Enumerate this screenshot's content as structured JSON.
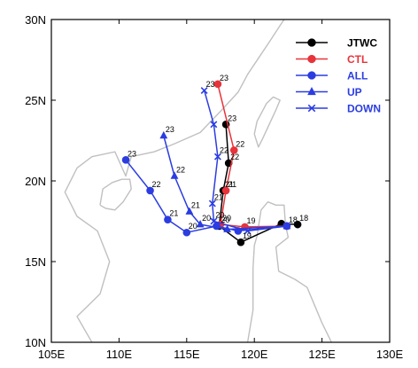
{
  "chart_data": {
    "type": "line",
    "title": "",
    "xlabel": "",
    "ylabel": "",
    "xlim": [
      105,
      130
    ],
    "ylim": [
      10,
      30
    ],
    "x_ticks": [
      105,
      110,
      115,
      120,
      125,
      130
    ],
    "x_tick_labels": [
      "105E",
      "110E",
      "115E",
      "120E",
      "125E",
      "130E"
    ],
    "y_ticks": [
      10,
      15,
      20,
      25,
      30
    ],
    "y_tick_labels": [
      "10N",
      "15N",
      "20N",
      "25N",
      "30N"
    ],
    "legend_position": "top-right",
    "grid": false,
    "basemap": "coastlines",
    "series": [
      {
        "name": "JTWC",
        "color": "#000000",
        "marker": "circle",
        "points": [
          {
            "x": 123.2,
            "y": 17.3,
            "label": "18"
          },
          {
            "x": 122.0,
            "y": 17.35,
            "label": ""
          },
          {
            "x": 119.0,
            "y": 16.2,
            "label": "19"
          },
          {
            "x": 117.4,
            "y": 17.2,
            "label": "20"
          },
          {
            "x": 117.7,
            "y": 19.4,
            "label": "21"
          },
          {
            "x": 118.1,
            "y": 21.1,
            "label": "22"
          },
          {
            "x": 117.9,
            "y": 23.5,
            "label": "23"
          }
        ]
      },
      {
        "name": "CTL",
        "color": "#e8333a",
        "marker": "circle",
        "points": [
          {
            "x": 122.4,
            "y": 17.2,
            "label": "18"
          },
          {
            "x": 119.3,
            "y": 17.15,
            "label": "19"
          },
          {
            "x": 117.5,
            "y": 17.3,
            "label": "20"
          },
          {
            "x": 117.9,
            "y": 19.4,
            "label": "21"
          },
          {
            "x": 118.5,
            "y": 21.9,
            "label": "22"
          },
          {
            "x": 117.3,
            "y": 26.0,
            "label": "23"
          }
        ]
      },
      {
        "name": "ALL",
        "color": "#2b3de0",
        "marker": "circle",
        "points": [
          {
            "x": 122.4,
            "y": 17.2,
            "label": ""
          },
          {
            "x": 118.8,
            "y": 16.9,
            "label": ""
          },
          {
            "x": 117.2,
            "y": 17.2,
            "label": ""
          },
          {
            "x": 115.0,
            "y": 16.8,
            "label": "20"
          },
          {
            "x": 113.6,
            "y": 17.6,
            "label": "21"
          },
          {
            "x": 112.3,
            "y": 19.4,
            "label": "22"
          },
          {
            "x": 110.5,
            "y": 21.3,
            "label": "23"
          }
        ]
      },
      {
        "name": "UP",
        "color": "#2b3de0",
        "marker": "triangle",
        "points": [
          {
            "x": 122.4,
            "y": 17.2,
            "label": ""
          },
          {
            "x": 118.0,
            "y": 17.0,
            "label": ""
          },
          {
            "x": 116.0,
            "y": 17.3,
            "label": "20"
          },
          {
            "x": 115.2,
            "y": 18.1,
            "label": "21"
          },
          {
            "x": 114.1,
            "y": 20.3,
            "label": "22"
          },
          {
            "x": 113.3,
            "y": 22.8,
            "label": "23"
          }
        ]
      },
      {
        "name": "DOWN",
        "color": "#2b3de0",
        "marker": "x",
        "points": [
          {
            "x": 122.4,
            "y": 17.2,
            "label": ""
          },
          {
            "x": 119.5,
            "y": 16.9,
            "label": ""
          },
          {
            "x": 117.0,
            "y": 17.5,
            "label": "20"
          },
          {
            "x": 116.9,
            "y": 18.6,
            "label": "21"
          },
          {
            "x": 117.3,
            "y": 21.5,
            "label": "22"
          },
          {
            "x": 117.0,
            "y": 23.5,
            "label": ""
          },
          {
            "x": 116.3,
            "y": 25.6,
            "label": "23"
          }
        ]
      }
    ],
    "coastlines": [
      [
        [
          108.0,
          10.0
        ],
        [
          106.9,
          11.6
        ],
        [
          108.6,
          13.0
        ],
        [
          109.3,
          15.0
        ],
        [
          108.4,
          16.9
        ],
        [
          106.9,
          17.8
        ],
        [
          106.0,
          19.3
        ],
        [
          106.9,
          20.8
        ],
        [
          108.0,
          21.5
        ],
        [
          109.7,
          21.8
        ],
        [
          110.5,
          20.3
        ],
        [
          110.9,
          21.5
        ],
        [
          112.6,
          21.8
        ],
        [
          114.1,
          22.3
        ],
        [
          116.0,
          23.0
        ],
        [
          117.6,
          24.4
        ],
        [
          118.8,
          25.5
        ],
        [
          119.5,
          26.6
        ],
        [
          120.3,
          27.6
        ],
        [
          121.1,
          28.6
        ],
        [
          121.8,
          29.5
        ],
        [
          122.2,
          30.0
        ]
      ],
      [
        [
          108.6,
          18.5
        ],
        [
          109.0,
          18.3
        ],
        [
          109.7,
          18.2
        ],
        [
          110.3,
          18.7
        ],
        [
          110.9,
          19.5
        ],
        [
          110.8,
          20.1
        ],
        [
          110.2,
          20.1
        ],
        [
          109.5,
          19.9
        ],
        [
          108.8,
          19.5
        ],
        [
          108.6,
          18.5
        ]
      ],
      [
        [
          120.0,
          22.9
        ],
        [
          120.3,
          22.1
        ],
        [
          120.6,
          22.6
        ],
        [
          121.1,
          23.5
        ],
        [
          121.6,
          24.4
        ],
        [
          121.9,
          25.0
        ],
        [
          121.4,
          25.2
        ],
        [
          120.9,
          24.8
        ],
        [
          120.2,
          23.7
        ],
        [
          120.0,
          22.9
        ]
      ],
      [
        [
          119.5,
          10.0
        ],
        [
          119.9,
          12.0
        ],
        [
          119.9,
          14.6
        ],
        [
          120.0,
          16.0
        ],
        [
          120.2,
          16.6
        ],
        [
          120.5,
          18.2
        ],
        [
          121.0,
          18.7
        ],
        [
          121.6,
          18.5
        ],
        [
          122.2,
          18.5
        ],
        [
          122.3,
          17.3
        ],
        [
          122.5,
          16.5
        ],
        [
          121.6,
          15.9
        ],
        [
          121.8,
          14.4
        ],
        [
          123.0,
          13.9
        ],
        [
          123.9,
          13.4
        ],
        [
          124.3,
          12.6
        ],
        [
          125.0,
          11.2
        ],
        [
          125.7,
          10.0
        ]
      ]
    ]
  },
  "legend": {
    "entries": [
      {
        "name": "JTWC",
        "color": "#000000",
        "marker": "circle"
      },
      {
        "name": "CTL",
        "color": "#e8333a",
        "marker": "circle"
      },
      {
        "name": "ALL",
        "color": "#2b3de0",
        "marker": "circle"
      },
      {
        "name": "UP",
        "color": "#2b3de0",
        "marker": "triangle"
      },
      {
        "name": "DOWN",
        "color": "#2b3de0",
        "marker": "x"
      }
    ]
  },
  "colors": {
    "coastline": "#c0c0c0",
    "axis": "#000000",
    "background": "#ffffff"
  }
}
